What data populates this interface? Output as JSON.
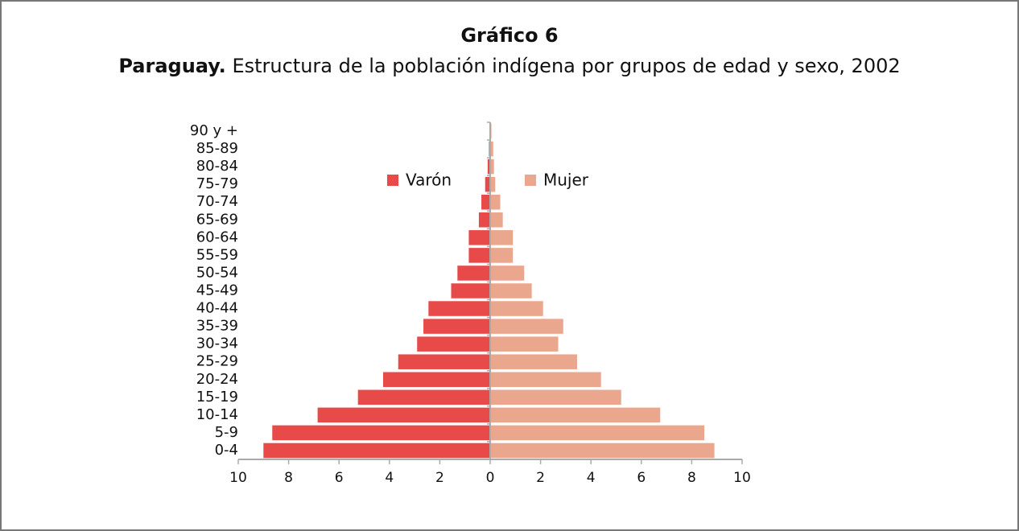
{
  "chart_data": {
    "type": "pyramid",
    "title": "Gráfico 6",
    "subtitle_lead": "Paraguay.",
    "subtitle": "Estructura de la población indígena por grupos de edad y sexo, 2002",
    "categories": [
      "0-4",
      "5-9",
      "10-14",
      "15-19",
      "20-24",
      "25-29",
      "30-34",
      "35-39",
      "40-44",
      "45-49",
      "50-54",
      "55-59",
      "60-64",
      "65-69",
      "70-74",
      "75-79",
      "80-84",
      "85-89",
      "90 y +"
    ],
    "series": [
      {
        "name": "Varón",
        "color": "#e84a4a",
        "side": "left",
        "values": [
          9.0,
          8.65,
          6.85,
          5.25,
          4.25,
          3.65,
          2.9,
          2.65,
          2.45,
          1.55,
          1.3,
          0.85,
          0.85,
          0.45,
          0.35,
          0.2,
          0.1,
          0.05,
          0.02
        ]
      },
      {
        "name": "Mujer",
        "color": "#eba68e",
        "side": "right",
        "values": [
          8.9,
          8.5,
          6.75,
          5.2,
          4.4,
          3.45,
          2.7,
          2.9,
          2.1,
          1.65,
          1.35,
          0.9,
          0.9,
          0.5,
          0.4,
          0.2,
          0.15,
          0.12,
          0.05
        ]
      }
    ],
    "xlim": [
      -10,
      10
    ],
    "xticks": [
      {
        "value": -10,
        "label": "10"
      },
      {
        "value": -8,
        "label": "8"
      },
      {
        "value": -6,
        "label": "6"
      },
      {
        "value": -4,
        "label": "4"
      },
      {
        "value": -2,
        "label": "2"
      },
      0,
      2,
      4,
      6,
      8,
      10
    ],
    "legend": "top"
  }
}
